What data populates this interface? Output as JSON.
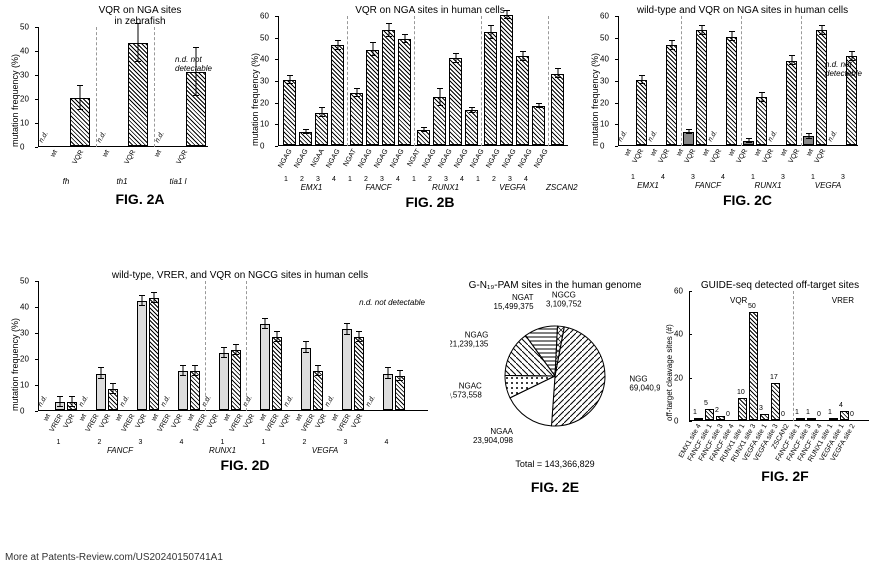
{
  "colors": {
    "bg": "#ffffff",
    "axis": "#000000",
    "hatch": "#000000",
    "barFill": "#ffffff",
    "sep": "#999999"
  },
  "figA": {
    "title": "VQR on NGA sites\nin zebrafish",
    "figLabel": "FIG. 2A",
    "ylabel": "mutation frequency (%)",
    "ylim": [
      0,
      50
    ],
    "ytick_step": 10,
    "nd_legend": "n.d. not detectable",
    "bars": [
      {
        "label": "wt",
        "val": 0,
        "nd": true
      },
      {
        "label": "VQR",
        "val": 20,
        "err": 5
      },
      {
        "label": "wt",
        "val": 0,
        "nd": true
      },
      {
        "label": "VQR",
        "val": 43,
        "err": 8
      },
      {
        "label": "wt",
        "val": 0,
        "nd": true
      },
      {
        "label": "VQR",
        "val": 31,
        "err": 10
      }
    ],
    "groups": [
      "fh",
      "th1",
      "tia1 l"
    ]
  },
  "figB": {
    "title": "VQR on NGA sites in human cells",
    "figLabel": "FIG. 2B",
    "ylabel": "mutation frequency (%)",
    "ylim": [
      0,
      60
    ],
    "ytick_step": 10,
    "bars": [
      {
        "label": "NGAG",
        "val": 30,
        "err": 2
      },
      {
        "label": "NGAG",
        "val": 6,
        "err": 1
      },
      {
        "label": "NGAA",
        "val": 15,
        "err": 2
      },
      {
        "label": "NGAG",
        "val": 46,
        "err": 2
      },
      {
        "label": "NGAT",
        "val": 24,
        "err": 2
      },
      {
        "label": "NGAG",
        "val": 44,
        "err": 3
      },
      {
        "label": "NGAG",
        "val": 53,
        "err": 3
      },
      {
        "label": "NGAG",
        "val": 49,
        "err": 2
      },
      {
        "label": "NGAT",
        "val": 7,
        "err": 1
      },
      {
        "label": "NGAG",
        "val": 22,
        "err": 4
      },
      {
        "label": "NGAG",
        "val": 40,
        "err": 2
      },
      {
        "label": "NGAG",
        "val": 16,
        "err": 1
      },
      {
        "label": "NGAG",
        "val": 52,
        "err": 3
      },
      {
        "label": "NGAG",
        "val": 60,
        "err": 2
      },
      {
        "label": "NGAG",
        "val": 41,
        "err": 2
      },
      {
        "label": "NGAG",
        "val": 18,
        "err": 1
      },
      {
        "label": "NGAG",
        "val": 33,
        "err": 2
      }
    ],
    "nums": [
      "1",
      "2",
      "3",
      "4",
      "1",
      "2",
      "3",
      "4",
      "1",
      "2",
      "3",
      "4",
      "1",
      "2",
      "3",
      "4",
      ""
    ],
    "groups": [
      "EMX1",
      "FANCF",
      "RUNX1",
      "VEGFA",
      "ZSCAN2"
    ]
  },
  "figC": {
    "title": "wild-type and VQR on NGA sites in human cells",
    "figLabel": "FIG. 2C",
    "ylabel": "mutation frequency (%)",
    "ylim": [
      0,
      60
    ],
    "ytick_step": 10,
    "nd_legend": "n.d. not detectable",
    "pairs": [
      {
        "wt": 0,
        "vqr": 30,
        "nd": true
      },
      {
        "wt": 0,
        "vqr": 46,
        "nd": true
      },
      {
        "wt": 6,
        "vqr": 53
      },
      {
        "wt": 0,
        "vqr": 50,
        "nd": true
      },
      {
        "wt": 2,
        "vqr": 22
      },
      {
        "wt": 0,
        "vqr": 39,
        "nd": true
      },
      {
        "wt": 4,
        "vqr": 53
      },
      {
        "wt": 0,
        "vqr": 41,
        "nd": true
      }
    ],
    "nums": [
      "1",
      "4",
      "3",
      "4",
      "1",
      "3",
      "1",
      "3"
    ],
    "groups": [
      "EMX1",
      "FANCF",
      "RUNX1",
      "VEGFA"
    ]
  },
  "figD": {
    "title": "wild-type, VRER, and VQR on NGCG sites in human cells",
    "figLabel": "FIG. 2D",
    "ylabel": "mutation frequency (%)",
    "ylim": [
      0,
      50
    ],
    "ytick_step": 10,
    "nd_legend": "n.d. not detectable",
    "triples": [
      {
        "wt": 0,
        "vrer": 3,
        "vqr": 3,
        "nd": true
      },
      {
        "wt": 0,
        "vrer": 14,
        "vqr": 8,
        "nd": true
      },
      {
        "wt": 0,
        "vrer": 42,
        "vqr": 43,
        "nd": true
      },
      {
        "wt": 0,
        "vrer": 15,
        "vqr": 15,
        "nd": true
      },
      {
        "wt": 0,
        "vrer": 22,
        "vqr": 23,
        "nd": true
      },
      {
        "wt": 0,
        "vrer": 33,
        "vqr": 28,
        "nd": true
      },
      {
        "wt": 0,
        "vrer": 24,
        "vqr": 15,
        "nd": true
      },
      {
        "wt": 0,
        "vrer": 31,
        "vqr": 28,
        "nd": true
      },
      {
        "wt": 0,
        "vrer": 14,
        "vqr": 13,
        "nd": true
      }
    ],
    "nums": [
      "1",
      "2",
      "3",
      "4",
      "1",
      "1",
      "2",
      "3",
      "4"
    ],
    "groups": [
      "FANCF",
      "RUNX1",
      "VEGFA"
    ],
    "groupSizes": [
      4,
      1,
      4
    ]
  },
  "figE": {
    "title": "G-N₁₉-PAM sites in the human genome",
    "figLabel": "FIG. 2E",
    "total": "Total = 143,366,829",
    "slices": [
      {
        "label": "NGCG",
        "val": 3109752,
        "color": "#ffffff",
        "pattern": "cross"
      },
      {
        "label": "NGG",
        "val": 69040911,
        "color": "#ffffff",
        "pattern": "diag"
      },
      {
        "label": "NGAA",
        "val": 23904098,
        "color": "#ffffff",
        "pattern": "none"
      },
      {
        "label": "NGAC",
        "val": 10573558,
        "color": "#ffffff",
        "pattern": "dots"
      },
      {
        "label": "NGAG",
        "val": 21239135,
        "color": "#ffffff",
        "pattern": "diag2"
      },
      {
        "label": "NGAT",
        "val": 15499375,
        "color": "#ffffff",
        "pattern": "horiz"
      }
    ]
  },
  "figF": {
    "title": "GUIDE-seq detected off-target sites",
    "figLabel": "FIG. 2F",
    "ylabel": "off-target cleavage sites (#)",
    "ylim": [
      0,
      60
    ],
    "ytick_step": 20,
    "leftLabel": "VQR",
    "rightLabel": "VRER",
    "bars": [
      {
        "label": "EMX1 site 4",
        "val": 1
      },
      {
        "label": "FANCF site 1",
        "val": 5
      },
      {
        "label": "FANCF site 3",
        "val": 2
      },
      {
        "label": "FANCF site 4",
        "val": 0
      },
      {
        "label": "RUNX1 site 1",
        "val": 10
      },
      {
        "label": "RUNX1 site 3",
        "val": 50
      },
      {
        "label": "VEGFA site 1",
        "val": 3
      },
      {
        "label": "VEGFA site 3",
        "val": 17
      },
      {
        "label": "ZSCAN2",
        "val": 0
      },
      {
        "label": "FANCF site 1",
        "val": 1
      },
      {
        "label": "FANCF site 3",
        "val": 1
      },
      {
        "label": "FANCF site 4",
        "val": 0
      },
      {
        "label": "RUNX1 site 1",
        "val": 1
      },
      {
        "label": "VEGFA site 1",
        "val": 4
      },
      {
        "label": "VEGFA site 2",
        "val": 0
      }
    ]
  },
  "footer": "More at Patents-Review.com/US20240150741A1"
}
